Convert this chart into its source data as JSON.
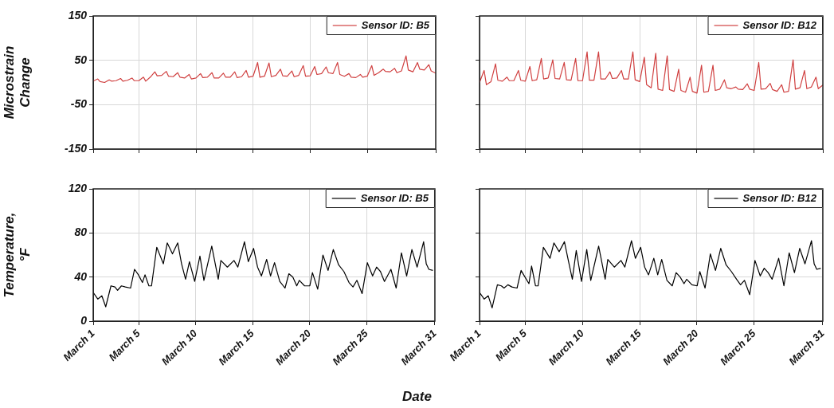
{
  "chart_data": [
    {
      "type": "line",
      "ylabel": "Microstrain Change",
      "xlim": [
        "--03-01",
        "--03-31"
      ],
      "xticks": [
        {
          "value": "--03-01",
          "label": null
        },
        {
          "value": "--03-05",
          "label": null
        },
        {
          "value": "--03-10",
          "label": null
        },
        {
          "value": "--03-15",
          "label": null
        },
        {
          "value": "--03-20",
          "label": null
        },
        {
          "value": "--03-25",
          "label": null
        },
        {
          "value": "--03-31",
          "label": null
        }
      ],
      "ylim": [
        -150,
        150
      ],
      "yticks": [
        -150,
        -50,
        50,
        150
      ],
      "grid": true,
      "legend": "top right",
      "tick_labels": "y",
      "x": [
        "--03-01T00:00",
        "--03-01T09:36",
        "--03-01T14:24",
        "--03-02T00:00",
        "--03-02T09:36",
        "--03-02T14:24",
        "--03-03T00:00",
        "--03-03T09:36",
        "--03-03T14:24",
        "--03-04T00:00",
        "--03-04T09:36",
        "--03-04T14:24",
        "--03-05T00:00",
        "--03-05T09:36",
        "--03-05T14:24",
        "--03-06T00:00",
        "--03-06T09:36",
        "--03-06T14:24",
        "--03-07T00:00",
        "--03-07T09:36",
        "--03-07T14:24",
        "--03-08T00:00",
        "--03-08T09:36",
        "--03-08T14:24",
        "--03-09T00:00",
        "--03-09T09:36",
        "--03-09T14:24",
        "--03-10T00:00",
        "--03-10T09:36",
        "--03-10T14:24",
        "--03-11T00:00",
        "--03-11T09:36",
        "--03-11T14:24",
        "--03-12T00:00",
        "--03-12T09:36",
        "--03-12T14:24",
        "--03-13T00:00",
        "--03-13T09:36",
        "--03-13T14:24",
        "--03-14T00:00",
        "--03-14T09:36",
        "--03-14T14:24",
        "--03-15T00:00",
        "--03-15T09:36",
        "--03-15T14:24",
        "--03-16T00:00",
        "--03-16T09:36",
        "--03-16T14:24",
        "--03-17T00:00",
        "--03-17T09:36",
        "--03-17T14:24",
        "--03-18T00:00",
        "--03-18T09:36",
        "--03-18T14:24",
        "--03-19T00:00",
        "--03-19T09:36",
        "--03-19T14:24",
        "--03-20T00:00",
        "--03-20T09:36",
        "--03-20T14:24",
        "--03-21T00:00",
        "--03-21T09:36",
        "--03-21T14:24",
        "--03-22T00:00",
        "--03-22T09:36",
        "--03-22T14:24",
        "--03-23T00:00",
        "--03-23T09:36",
        "--03-23T14:24",
        "--03-24T00:00",
        "--03-24T09:36",
        "--03-24T14:24",
        "--03-25T00:00",
        "--03-25T09:36",
        "--03-25T14:24",
        "--03-26T00:00",
        "--03-26T09:36",
        "--03-26T14:24",
        "--03-27T00:00",
        "--03-27T09:36",
        "--03-27T14:24",
        "--03-28T00:00",
        "--03-28T09:36",
        "--03-28T14:24",
        "--03-29T00:00",
        "--03-29T09:36",
        "--03-29T14:24",
        "--03-30T00:00",
        "--03-30T09:36",
        "--03-30T14:24",
        "--03-31T00:00"
      ],
      "series": [
        {
          "name": "Sensor ID: B5",
          "color": "#d04040",
          "values": [
            3,
            8,
            2,
            0,
            6,
            3,
            4,
            9,
            3,
            5,
            10,
            4,
            4,
            12,
            3,
            12,
            24,
            15,
            16,
            25,
            14,
            13,
            22,
            12,
            10,
            18,
            8,
            10,
            20,
            11,
            12,
            22,
            10,
            10,
            21,
            12,
            12,
            24,
            11,
            13,
            27,
            12,
            14,
            45,
            12,
            14,
            44,
            13,
            16,
            30,
            15,
            14,
            26,
            13,
            16,
            38,
            14,
            15,
            36,
            18,
            20,
            35,
            22,
            20,
            45,
            18,
            14,
            20,
            12,
            11,
            18,
            12,
            14,
            38,
            16,
            22,
            30,
            25,
            24,
            32,
            22,
            26,
            60,
            28,
            24,
            45,
            30,
            28,
            40,
            26,
            21
          ]
        }
      ]
    },
    {
      "type": "line",
      "xlim": [
        "--03-01",
        "--03-31"
      ],
      "xticks": [
        {
          "value": "--03-01",
          "label": null
        },
        {
          "value": "--03-05",
          "label": null
        },
        {
          "value": "--03-10",
          "label": null
        },
        {
          "value": "--03-15",
          "label": null
        },
        {
          "value": "--03-20",
          "label": null
        },
        {
          "value": "--03-25",
          "label": null
        },
        {
          "value": "--03-31",
          "label": null
        }
      ],
      "ylim": [
        -150,
        150
      ],
      "yticks": [
        {
          "value": -150,
          "label": null
        },
        {
          "value": -50,
          "label": null
        },
        {
          "value": 50,
          "label": null
        },
        {
          "value": 150,
          "label": null
        }
      ],
      "grid": true,
      "legend": "top right",
      "tick_labels": false,
      "x": [
        "--03-01T00:00",
        "--03-01T09:36",
        "--03-01T14:24",
        "--03-02T00:00",
        "--03-02T09:36",
        "--03-02T14:24",
        "--03-03T00:00",
        "--03-03T09:36",
        "--03-03T14:24",
        "--03-04T00:00",
        "--03-04T09:36",
        "--03-04T14:24",
        "--03-05T00:00",
        "--03-05T09:36",
        "--03-05T14:24",
        "--03-06T00:00",
        "--03-06T09:36",
        "--03-06T14:24",
        "--03-07T00:00",
        "--03-07T09:36",
        "--03-07T14:24",
        "--03-08T00:00",
        "--03-08T09:36",
        "--03-08T14:24",
        "--03-09T00:00",
        "--03-09T09:36",
        "--03-09T14:24",
        "--03-10T00:00",
        "--03-10T09:36",
        "--03-10T14:24",
        "--03-11T00:00",
        "--03-11T09:36",
        "--03-11T14:24",
        "--03-12T00:00",
        "--03-12T09:36",
        "--03-12T14:24",
        "--03-13T00:00",
        "--03-13T09:36",
        "--03-13T14:24",
        "--03-14T00:00",
        "--03-14T09:36",
        "--03-14T14:24",
        "--03-15T00:00",
        "--03-15T09:36",
        "--03-15T14:24",
        "--03-16T00:00",
        "--03-16T09:36",
        "--03-16T14:24",
        "--03-17T00:00",
        "--03-17T09:36",
        "--03-17T14:24",
        "--03-18T00:00",
        "--03-18T09:36",
        "--03-18T14:24",
        "--03-19T00:00",
        "--03-19T09:36",
        "--03-19T14:24",
        "--03-20T00:00",
        "--03-20T09:36",
        "--03-20T14:24",
        "--03-21T00:00",
        "--03-21T09:36",
        "--03-21T14:24",
        "--03-22T00:00",
        "--03-22T09:36",
        "--03-22T14:24",
        "--03-23T00:00",
        "--03-23T09:36",
        "--03-23T14:24",
        "--03-24T00:00",
        "--03-24T09:36",
        "--03-24T14:24",
        "--03-25T00:00",
        "--03-25T09:36",
        "--03-25T14:24",
        "--03-26T00:00",
        "--03-26T09:36",
        "--03-26T14:24",
        "--03-27T00:00",
        "--03-27T09:36",
        "--03-27T14:24",
        "--03-28T00:00",
        "--03-28T09:36",
        "--03-28T14:24",
        "--03-29T00:00",
        "--03-29T09:36",
        "--03-29T14:24",
        "--03-30T00:00",
        "--03-30T09:36",
        "--03-30T14:24",
        "--03-31T00:00"
      ],
      "series": [
        {
          "name": "Sensor ID: B12",
          "color": "#d04040",
          "values": [
            0,
            27,
            -5,
            2,
            42,
            5,
            3,
            12,
            4,
            4,
            27,
            5,
            3,
            36,
            4,
            6,
            54,
            8,
            10,
            51,
            9,
            8,
            45,
            6,
            5,
            54,
            4,
            4,
            69,
            5,
            5,
            69,
            8,
            8,
            24,
            9,
            10,
            27,
            8,
            8,
            69,
            6,
            2,
            57,
            -5,
            -12,
            66,
            -15,
            -18,
            60,
            -16,
            -20,
            30,
            -18,
            -22,
            12,
            -20,
            -24,
            39,
            -22,
            -20,
            39,
            -18,
            -15,
            6,
            -12,
            -14,
            -10,
            -15,
            -16,
            -3,
            -15,
            -18,
            45,
            -15,
            -14,
            -2,
            -16,
            -20,
            -5,
            -22,
            -20,
            51,
            -15,
            -12,
            27,
            -14,
            -10,
            12,
            -14,
            -6
          ]
        }
      ]
    },
    {
      "type": "line",
      "ylabel": "Temperature, °F",
      "xlabel": "Date",
      "xlim": [
        "--03-01",
        "--03-31"
      ],
      "xticks": [
        {
          "value": "--03-01",
          "label": "March 1"
        },
        {
          "value": "--03-05",
          "label": "March 5"
        },
        {
          "value": "--03-10",
          "label": "March 10"
        },
        {
          "value": "--03-15",
          "label": "March 15"
        },
        {
          "value": "--03-20",
          "label": "March 20"
        },
        {
          "value": "--03-25",
          "label": "March 25"
        },
        {
          "value": "--03-31",
          "label": "March 31"
        }
      ],
      "ylim": [
        0,
        120
      ],
      "yticks": [
        0,
        40,
        80,
        120
      ],
      "grid": true,
      "legend": "top right",
      "x": [
        "--03-01T00:00",
        "--03-01T09:50",
        "--03-01T18:14",
        "--03-02T02:24",
        "--03-02T13:26",
        "--03-02T21:50",
        "--03-03T03:22",
        "--03-03T11:31",
        "--03-03T19:55",
        "--03-04T06:43",
        "--03-04T15:07",
        "--03-04T23:17",
        "--03-05T07:41",
        "--03-05T13:12",
        "--03-05T21:22",
        "--03-06T02:53",
        "--03-06T13:55",
        "--03-07T03:50",
        "--03-07T12:00",
        "--03-07T23:02",
        "--03-08T10:05",
        "--03-08T18:14",
        "--03-09T02:38",
        "--03-09T10:48",
        "--03-09T21:50",
        "--03-10T08:53",
        "--03-10T17:17",
        "--03-11T09:50",
        "--03-11T23:31",
        "--03-12T05:02",
        "--03-12T18:43",
        "--03-13T08:38",
        "--03-13T16:48",
        "--03-14T06:43",
        "--03-14T14:53",
        "--03-15T01:55",
        "--03-15T10:19",
        "--03-15T18:29",
        "--03-16T05:31",
        "--03-16T13:41",
        "--03-16T22:05",
        "--03-17T09:07",
        "--03-17T20:10",
        "--03-18T04:19",
        "--03-18T12:43",
        "--03-18T20:53",
        "--03-19T02:24",
        "--03-19T13:26",
        "--03-20T00:29",
        "--03-20T06:00",
        "--03-20T17:02",
        "--03-21T04:05",
        "--03-21T14:53",
        "--03-22T01:55",
        "--03-22T13:12",
        "--03-23T00:14",
        "--03-23T11:02",
        "--03-23T19:26",
        "--03-24T03:36",
        "--03-24T14:38",
        "--03-25T01:41",
        "--03-25T12:43",
        "--03-25T21:07",
        "--03-26T05:17",
        "--03-26T13:41",
        "--03-27T03:22",
        "--03-27T14:24",
        "--03-28T01:26",
        "--03-28T12:29",
        "--03-28T23:31",
        "--03-29T10:34",
        "--03-30T00:14",
        "--03-30T05:46",
        "--03-30T11:17",
        "--03-30T19:41"
      ],
      "series": [
        {
          "name": "Sensor ID: B5",
          "color": "#000000",
          "values": [
            26,
            20,
            23,
            13,
            32,
            31,
            28,
            32,
            31,
            30,
            47,
            42,
            35,
            42,
            32,
            32,
            67,
            52,
            71,
            61,
            71,
            52,
            38,
            54,
            36,
            59,
            37,
            68,
            38,
            55,
            49,
            55,
            49,
            72,
            54,
            66,
            49,
            41,
            56,
            41,
            53,
            36,
            30,
            43,
            40,
            32,
            37,
            32,
            32,
            44,
            29,
            60,
            46,
            65,
            51,
            45,
            35,
            31,
            37,
            25,
            53,
            41,
            49,
            45,
            36,
            47,
            30,
            62,
            41,
            65,
            49,
            72,
            52,
            47,
            46
          ]
        }
      ]
    },
    {
      "type": "line",
      "xlim": [
        "--03-01",
        "--03-31"
      ],
      "xticks": [
        {
          "value": "--03-01",
          "label": "March 1"
        },
        {
          "value": "--03-05",
          "label": "March 5"
        },
        {
          "value": "--03-10",
          "label": "March 10"
        },
        {
          "value": "--03-15",
          "label": "March 15"
        },
        {
          "value": "--03-20",
          "label": "March 20"
        },
        {
          "value": "--03-25",
          "label": "March 25"
        },
        {
          "value": "--03-31",
          "label": "March 31"
        }
      ],
      "ylim": [
        0,
        120
      ],
      "yticks": [
        {
          "value": 0,
          "label": null
        },
        {
          "value": 40,
          "label": null
        },
        {
          "value": 80,
          "label": null
        },
        {
          "value": 120,
          "label": null
        }
      ],
      "grid": true,
      "legend": "top right",
      "tick_labels": "x",
      "x": [
        "--03-01T00:00",
        "--03-01T09:50",
        "--03-01T18:14",
        "--03-02T02:24",
        "--03-02T13:26",
        "--03-02T21:50",
        "--03-03T03:22",
        "--03-03T11:31",
        "--03-03T19:55",
        "--03-04T06:43",
        "--03-04T15:07",
        "--03-04T23:17",
        "--03-05T07:41",
        "--03-05T13:12",
        "--03-05T21:22",
        "--03-06T02:53",
        "--03-06T13:55",
        "--03-07T03:50",
        "--03-07T12:00",
        "--03-07T23:02",
        "--03-08T10:05",
        "--03-08T18:14",
        "--03-09T02:38",
        "--03-09T10:48",
        "--03-09T21:50",
        "--03-10T08:53",
        "--03-10T17:17",
        "--03-11T09:50",
        "--03-11T23:31",
        "--03-12T05:02",
        "--03-12T18:43",
        "--03-13T08:38",
        "--03-13T16:48",
        "--03-14T06:43",
        "--03-14T14:53",
        "--03-15T01:55",
        "--03-15T10:19",
        "--03-15T18:29",
        "--03-16T05:31",
        "--03-16T13:41",
        "--03-16T22:05",
        "--03-17T09:07",
        "--03-17T20:10",
        "--03-18T04:19",
        "--03-18T12:43",
        "--03-18T20:53",
        "--03-19T02:24",
        "--03-19T13:26",
        "--03-20T00:29",
        "--03-20T06:00",
        "--03-20T17:02",
        "--03-21T04:05",
        "--03-21T14:53",
        "--03-22T01:55",
        "--03-22T13:12",
        "--03-23T00:14",
        "--03-23T11:02",
        "--03-23T19:26",
        "--03-24T03:36",
        "--03-24T14:38",
        "--03-25T01:41",
        "--03-25T12:43",
        "--03-25T21:07",
        "--03-26T05:17",
        "--03-26T13:41",
        "--03-27T03:22",
        "--03-27T14:24",
        "--03-28T01:26",
        "--03-28T12:29",
        "--03-28T23:31",
        "--03-29T10:34",
        "--03-30T00:14",
        "--03-30T05:46",
        "--03-30T11:17",
        "--03-30T19:41"
      ],
      "series": [
        {
          "name": "Sensor ID: B12",
          "color": "#000000",
          "values": [
            26,
            20,
            23,
            12,
            33,
            32,
            30,
            33,
            31,
            30,
            46,
            40,
            34,
            50,
            32,
            32,
            67,
            57,
            71,
            63,
            72,
            55,
            38,
            64,
            36,
            65,
            37,
            68,
            38,
            56,
            49,
            55,
            49,
            73,
            57,
            67,
            49,
            42,
            57,
            42,
            56,
            37,
            32,
            44,
            40,
            34,
            38,
            33,
            32,
            45,
            30,
            61,
            46,
            66,
            51,
            45,
            38,
            33,
            37,
            24,
            55,
            41,
            48,
            44,
            38,
            57,
            32,
            62,
            44,
            66,
            52,
            73,
            52,
            47,
            48
          ]
        }
      ]
    }
  ]
}
